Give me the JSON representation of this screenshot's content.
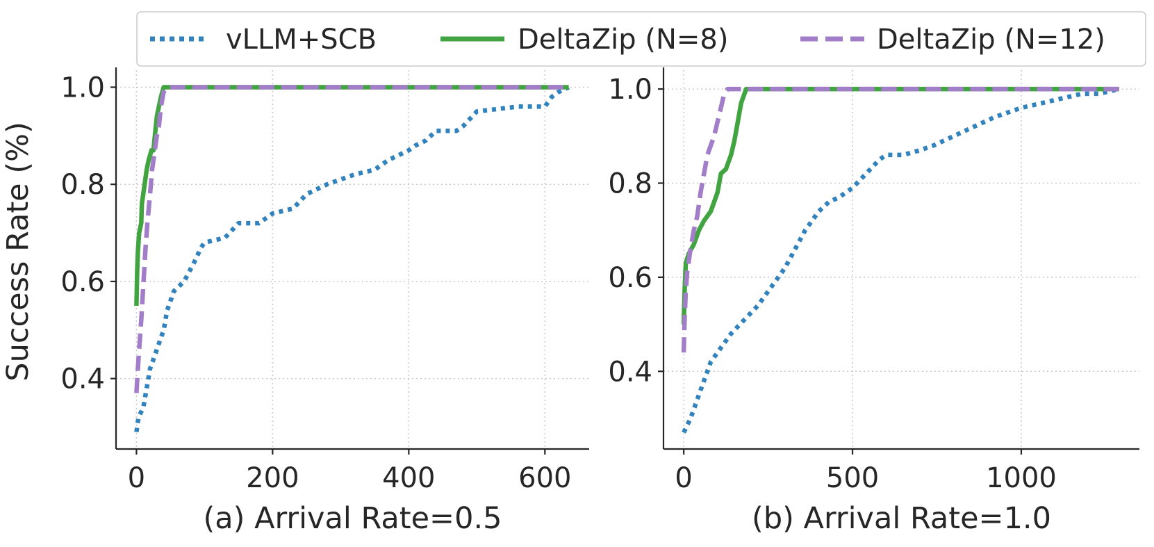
{
  "legend": {
    "entries": [
      {
        "label": "vLLM+SCB",
        "color": "#3182bd",
        "style": "dotted"
      },
      {
        "label": "DeltaZip (N=8)",
        "color": "#41a441",
        "style": "solid"
      },
      {
        "label": "DeltaZip (N=12)",
        "color": "#a27ec8",
        "style": "dashed"
      }
    ]
  },
  "ylabel": "Success Rate (%)",
  "chart_data": [
    {
      "type": "line",
      "title": "",
      "xlabel": "(a) Arrival Rate=0.5",
      "ylabel": "Success Rate (%)",
      "xlim": [
        -30,
        665
      ],
      "ylim": [
        0.255,
        1.035
      ],
      "xticks": [
        0,
        200,
        400,
        600
      ],
      "xtick_labels": [
        "0",
        "200",
        "400",
        "600"
      ],
      "yticks": [
        0.4,
        0.6,
        0.8,
        1.0
      ],
      "ytick_labels": [
        "0.4",
        "0.6",
        "0.8",
        "1.0"
      ],
      "grid": true,
      "series": [
        {
          "name": "vLLM+SCB",
          "points": [
            [
              0,
              0.29
            ],
            [
              3,
              0.32
            ],
            [
              10,
              0.34
            ],
            [
              15,
              0.38
            ],
            [
              20,
              0.42
            ],
            [
              30,
              0.46
            ],
            [
              40,
              0.5
            ],
            [
              45,
              0.54
            ],
            [
              55,
              0.58
            ],
            [
              70,
              0.6
            ],
            [
              85,
              0.64
            ],
            [
              95,
              0.67
            ],
            [
              100,
              0.68
            ],
            [
              130,
              0.69
            ],
            [
              150,
              0.72
            ],
            [
              180,
              0.72
            ],
            [
              200,
              0.74
            ],
            [
              230,
              0.75
            ],
            [
              250,
              0.78
            ],
            [
              280,
              0.8
            ],
            [
              300,
              0.81
            ],
            [
              320,
              0.82
            ],
            [
              350,
              0.83
            ],
            [
              370,
              0.85
            ],
            [
              400,
              0.87
            ],
            [
              410,
              0.88
            ],
            [
              425,
              0.89
            ],
            [
              440,
              0.91
            ],
            [
              470,
              0.91
            ],
            [
              480,
              0.92
            ],
            [
              500,
              0.95
            ],
            [
              560,
              0.96
            ],
            [
              600,
              0.96
            ],
            [
              610,
              0.98
            ],
            [
              620,
              0.99
            ],
            [
              635,
              1.0
            ]
          ]
        },
        {
          "name": "DeltaZip (N=8)",
          "points": [
            [
              0,
              0.55
            ],
            [
              1,
              0.62
            ],
            [
              2,
              0.66
            ],
            [
              4,
              0.7
            ],
            [
              7,
              0.72
            ],
            [
              8,
              0.76
            ],
            [
              10,
              0.78
            ],
            [
              12,
              0.8
            ],
            [
              15,
              0.83
            ],
            [
              18,
              0.85
            ],
            [
              22,
              0.87
            ],
            [
              25,
              0.87
            ],
            [
              27,
              0.9
            ],
            [
              30,
              0.94
            ],
            [
              33,
              0.96
            ],
            [
              36,
              0.98
            ],
            [
              40,
              1.0
            ],
            [
              635,
              1.0
            ]
          ]
        },
        {
          "name": "DeltaZip (N=12)",
          "points": [
            [
              0,
              0.37
            ],
            [
              2,
              0.42
            ],
            [
              4,
              0.46
            ],
            [
              7,
              0.52
            ],
            [
              10,
              0.59
            ],
            [
              13,
              0.66
            ],
            [
              16,
              0.72
            ],
            [
              20,
              0.78
            ],
            [
              23,
              0.83
            ],
            [
              26,
              0.86
            ],
            [
              30,
              0.9
            ],
            [
              33,
              0.92
            ],
            [
              36,
              0.96
            ],
            [
              40,
              0.99
            ],
            [
              45,
              1.0
            ],
            [
              635,
              1.0
            ]
          ]
        }
      ]
    },
    {
      "type": "line",
      "title": "",
      "xlabel": "(b) Arrival Rate=1.0",
      "ylabel": "",
      "xlim": [
        -60,
        1350
      ],
      "ylim": [
        0.235,
        1.04
      ],
      "xticks": [
        0,
        500,
        1000
      ],
      "xtick_labels": [
        "0",
        "500",
        "1000"
      ],
      "yticks": [
        0.4,
        0.6,
        0.8,
        1.0
      ],
      "ytick_labels": [
        "0.4",
        "0.6",
        "0.8",
        "1.0"
      ],
      "grid": true,
      "series": [
        {
          "name": "vLLM+SCB",
          "points": [
            [
              0,
              0.27
            ],
            [
              20,
              0.3
            ],
            [
              40,
              0.34
            ],
            [
              60,
              0.38
            ],
            [
              80,
              0.42
            ],
            [
              110,
              0.45
            ],
            [
              140,
              0.48
            ],
            [
              180,
              0.51
            ],
            [
              220,
              0.54
            ],
            [
              260,
              0.58
            ],
            [
              300,
              0.62
            ],
            [
              330,
              0.66
            ],
            [
              360,
              0.7
            ],
            [
              400,
              0.74
            ],
            [
              430,
              0.76
            ],
            [
              460,
              0.77
            ],
            [
              500,
              0.79
            ],
            [
              540,
              0.82
            ],
            [
              580,
              0.85
            ],
            [
              600,
              0.86
            ],
            [
              650,
              0.86
            ],
            [
              700,
              0.87
            ],
            [
              740,
              0.88
            ],
            [
              800,
              0.9
            ],
            [
              860,
              0.92
            ],
            [
              920,
              0.94
            ],
            [
              960,
              0.95
            ],
            [
              1000,
              0.96
            ],
            [
              1060,
              0.97
            ],
            [
              1120,
              0.98
            ],
            [
              1180,
              0.99
            ],
            [
              1230,
              0.99
            ],
            [
              1290,
              1.0
            ]
          ]
        },
        {
          "name": "DeltaZip (N=8)",
          "points": [
            [
              0,
              0.5
            ],
            [
              3,
              0.58
            ],
            [
              6,
              0.63
            ],
            [
              15,
              0.65
            ],
            [
              30,
              0.67
            ],
            [
              45,
              0.7
            ],
            [
              60,
              0.72
            ],
            [
              80,
              0.74
            ],
            [
              90,
              0.76
            ],
            [
              100,
              0.78
            ],
            [
              110,
              0.82
            ],
            [
              125,
              0.83
            ],
            [
              130,
              0.84
            ],
            [
              140,
              0.86
            ],
            [
              150,
              0.89
            ],
            [
              160,
              0.93
            ],
            [
              170,
              0.97
            ],
            [
              185,
              1.0
            ],
            [
              1290,
              1.0
            ]
          ]
        },
        {
          "name": "DeltaZip (N=12)",
          "points": [
            [
              0,
              0.44
            ],
            [
              3,
              0.52
            ],
            [
              6,
              0.57
            ],
            [
              10,
              0.61
            ],
            [
              20,
              0.66
            ],
            [
              30,
              0.7
            ],
            [
              40,
              0.73
            ],
            [
              50,
              0.78
            ],
            [
              60,
              0.82
            ],
            [
              70,
              0.86
            ],
            [
              80,
              0.88
            ],
            [
              90,
              0.9
            ],
            [
              100,
              0.93
            ],
            [
              110,
              0.96
            ],
            [
              120,
              0.99
            ],
            [
              130,
              1.0
            ],
            [
              1290,
              1.0
            ]
          ]
        }
      ]
    }
  ]
}
